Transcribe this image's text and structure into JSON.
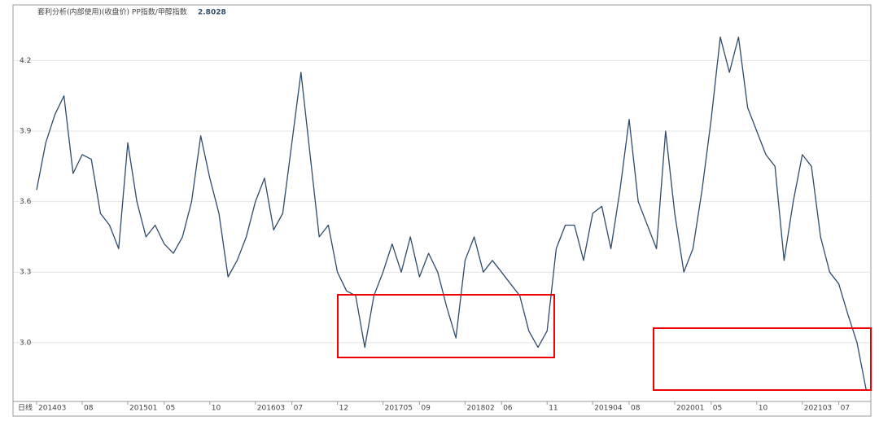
{
  "chart_data": {
    "type": "line",
    "title": "套利分析(内部使用)(收盘价) PP指数/甲醇指数",
    "last_value": "2.8028",
    "period": "日线",
    "categories": [
      "201403",
      null,
      null,
      null,
      null,
      "08",
      null,
      null,
      null,
      null,
      "201501",
      null,
      null,
      null,
      "05",
      null,
      null,
      null,
      null,
      "10",
      null,
      null,
      null,
      null,
      "201603",
      null,
      null,
      null,
      "07",
      null,
      null,
      null,
      null,
      "12",
      null,
      null,
      null,
      null,
      "201705",
      null,
      null,
      null,
      "09",
      null,
      null,
      null,
      null,
      "201802",
      null,
      null,
      null,
      "06",
      null,
      null,
      null,
      null,
      "11",
      null,
      null,
      null,
      null,
      "201904",
      null,
      null,
      null,
      "08",
      null,
      null,
      null,
      null,
      "202001",
      null,
      null,
      null,
      "05",
      null,
      null,
      null,
      null,
      "10",
      null,
      null,
      null,
      null,
      "202103",
      null,
      null,
      null,
      "07",
      null,
      null,
      null
    ],
    "series": [
      {
        "name": "PP指数/甲醇指数",
        "color": "#2f4a6b",
        "values": [
          3.65,
          3.85,
          3.97,
          4.05,
          3.72,
          3.8,
          3.78,
          3.55,
          3.5,
          3.4,
          3.85,
          3.6,
          3.45,
          3.5,
          3.42,
          3.38,
          3.45,
          3.6,
          3.88,
          3.7,
          3.55,
          3.28,
          3.35,
          3.45,
          3.6,
          3.7,
          3.48,
          3.55,
          3.85,
          4.15,
          3.8,
          3.45,
          3.5,
          3.3,
          3.22,
          3.2,
          2.98,
          3.2,
          3.3,
          3.42,
          3.3,
          3.45,
          3.28,
          3.38,
          3.3,
          3.15,
          3.02,
          3.35,
          3.45,
          3.3,
          3.35,
          3.3,
          3.25,
          3.2,
          3.05,
          2.98,
          3.05,
          3.4,
          3.5,
          3.5,
          3.35,
          3.55,
          3.58,
          3.4,
          3.65,
          3.95,
          3.6,
          3.5,
          3.4,
          3.9,
          3.55,
          3.3,
          3.4,
          3.65,
          3.95,
          4.3,
          4.15,
          4.3,
          4.0,
          3.9,
          3.8,
          3.75,
          3.35,
          3.6,
          3.8,
          3.75,
          3.45,
          3.3,
          3.25,
          3.12,
          3.0,
          2.8
        ]
      }
    ],
    "ylim": [
      2.75,
      4.43
    ],
    "yticks": [
      {
        "value": 3,
        "label": "3.0"
      },
      3.3,
      3.6,
      3.9,
      4.2
    ],
    "grid": true
  }
}
